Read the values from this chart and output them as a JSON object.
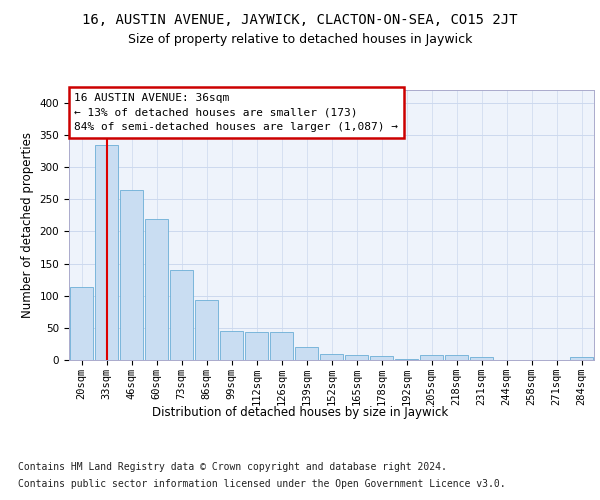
{
  "title": "16, AUSTIN AVENUE, JAYWICK, CLACTON-ON-SEA, CO15 2JT",
  "subtitle": "Size of property relative to detached houses in Jaywick",
  "xlabel": "Distribution of detached houses by size in Jaywick",
  "ylabel": "Number of detached properties",
  "categories": [
    "20sqm",
    "33sqm",
    "46sqm",
    "60sqm",
    "73sqm",
    "86sqm",
    "99sqm",
    "112sqm",
    "126sqm",
    "139sqm",
    "152sqm",
    "165sqm",
    "178sqm",
    "192sqm",
    "205sqm",
    "218sqm",
    "231sqm",
    "244sqm",
    "258sqm",
    "271sqm",
    "284sqm"
  ],
  "values": [
    113,
    335,
    265,
    220,
    140,
    93,
    45,
    43,
    43,
    20,
    10,
    8,
    6,
    2,
    8,
    8,
    4,
    0,
    0,
    0,
    5
  ],
  "bar_color": "#c9ddf2",
  "bar_edge_color": "#6baed6",
  "highlight_bar_index": 1,
  "highlight_color": "#dd0000",
  "annotation_text": "16 AUSTIN AVENUE: 36sqm\n← 13% of detached houses are smaller (173)\n84% of semi-detached houses are larger (1,087) →",
  "annotation_box_color": "#ffffff",
  "annotation_box_edge": "#cc0000",
  "ylim": [
    0,
    420
  ],
  "yticks": [
    0,
    50,
    100,
    150,
    200,
    250,
    300,
    350,
    400
  ],
  "grid_color": "#ccd9ee",
  "bg_color": "#eef3fb",
  "footer_line1": "Contains HM Land Registry data © Crown copyright and database right 2024.",
  "footer_line2": "Contains public sector information licensed under the Open Government Licence v3.0.",
  "title_fontsize": 10,
  "subtitle_fontsize": 9,
  "axis_label_fontsize": 8.5,
  "tick_fontsize": 7.5,
  "footer_fontsize": 7,
  "annot_fontsize": 8
}
